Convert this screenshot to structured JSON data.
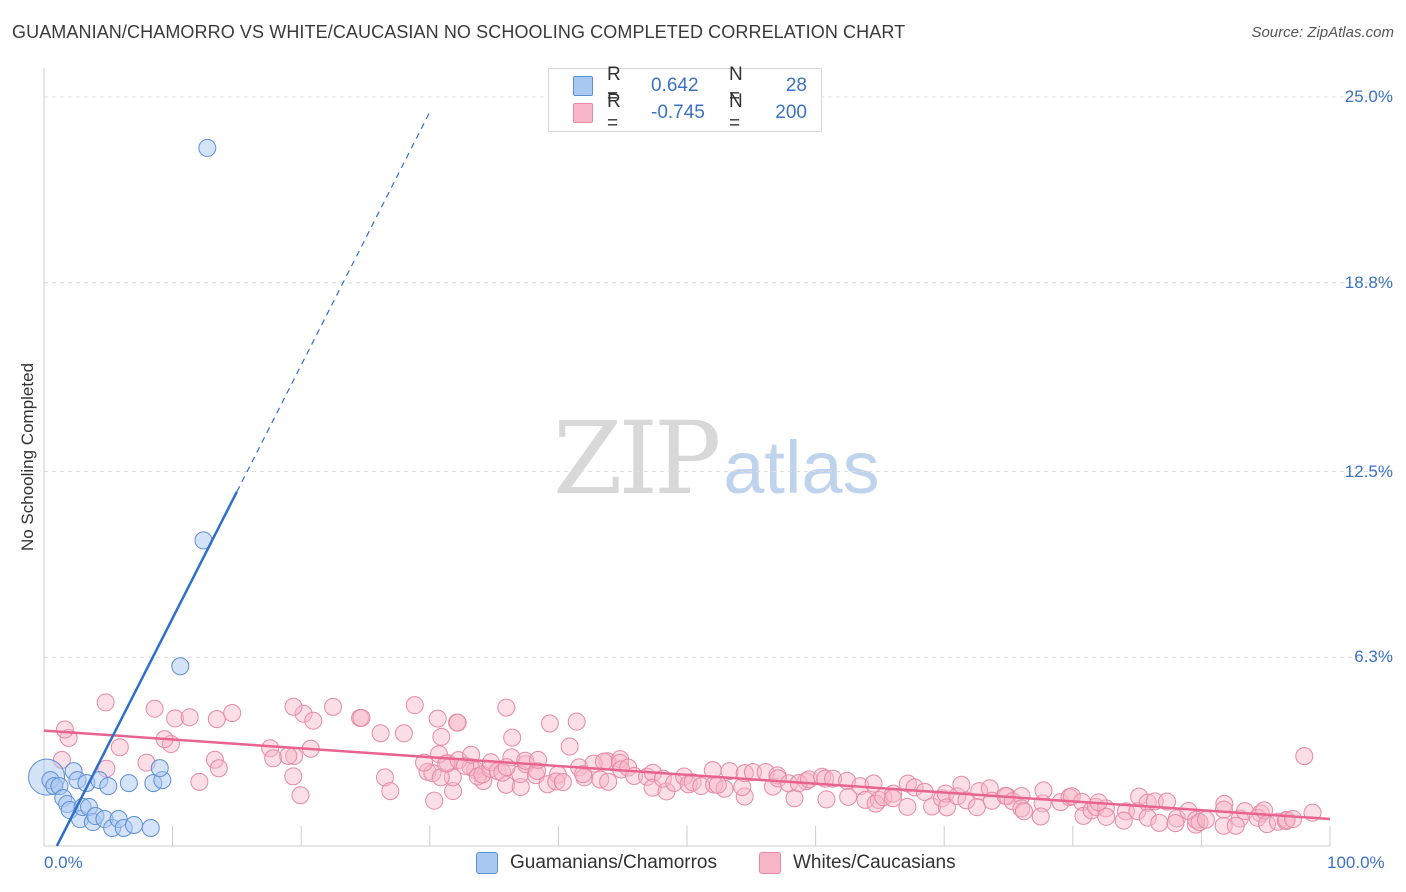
{
  "chart_data": {
    "type": "scatter",
    "title": "GUAMANIAN/CHAMORRO VS WHITE/CAUCASIAN NO SCHOOLING COMPLETED CORRELATION CHART",
    "source": "Source: ZipAtlas.com",
    "xlabel": "",
    "ylabel": "No Schooling Completed",
    "xlim": [
      0,
      100
    ],
    "ylim": [
      0,
      26
    ],
    "x_tick_labels": [
      "0.0%",
      "100.0%"
    ],
    "y_ticks": [
      6.3,
      12.5,
      18.8,
      25.0
    ],
    "y_tick_labels": [
      "6.3%",
      "12.5%",
      "18.8%",
      "25.0%"
    ],
    "grid": true,
    "watermark": {
      "zip": "ZIP",
      "atlas": "atlas"
    },
    "legend_stats": [
      {
        "r_label": "R =",
        "r_value": "0.642",
        "n_label": "N =",
        "n_value": "28"
      },
      {
        "r_label": "R =",
        "r_value": "-0.745",
        "n_label": "N =",
        "n_value": "200"
      }
    ],
    "series": [
      {
        "name": "Guamanians/Chamorros",
        "color": "#a9c8f2",
        "edge_color": "#5e8fd3",
        "line_color": "#2e6fcc",
        "trend": {
          "x0": 1.0,
          "y0": 0.0,
          "x1": 30.0,
          "y1": 24.5,
          "solid_until_x": 15.0
        },
        "x": [
          0.5,
          0.8,
          1.2,
          1.5,
          1.8,
          2.0,
          2.3,
          2.6,
          2.8,
          3.0,
          3.3,
          3.5,
          3.8,
          4.0,
          4.3,
          4.7,
          5.0,
          5.3,
          5.8,
          6.2,
          6.6,
          7.0,
          8.5,
          9.2,
          9.0,
          8.3,
          10.6,
          12.4
        ],
        "y": [
          2.2,
          2.0,
          2.0,
          1.6,
          1.4,
          1.2,
          2.5,
          2.2,
          0.9,
          1.3,
          2.1,
          1.3,
          0.8,
          1.0,
          2.2,
          0.9,
          2.0,
          0.6,
          0.9,
          0.6,
          2.1,
          0.7,
          2.1,
          2.2,
          2.6,
          0.6,
          6.0,
          10.2
        ],
        "extra_point": {
          "x": 12.7,
          "y": 23.3
        }
      },
      {
        "name": "Whites/Caucasians",
        "color": "#f7b6c8",
        "edge_color": "#e68aa6",
        "line_color": "#e8648f",
        "trend": {
          "x0": 0,
          "y0": 3.85,
          "x1": 100,
          "y1": 0.9
        }
      }
    ]
  }
}
